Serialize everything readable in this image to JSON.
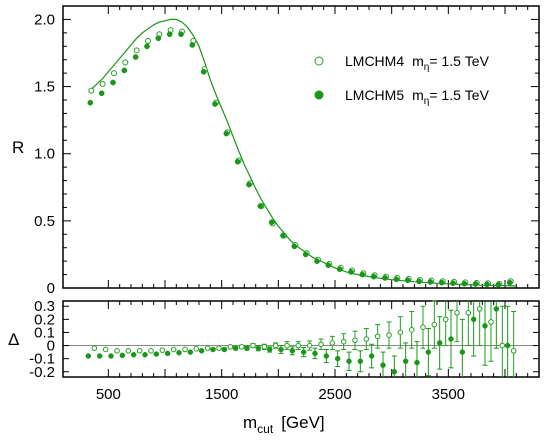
{
  "chart_data": [
    {
      "type": "scatter",
      "panel": "top",
      "ylabel": "R",
      "xlim": [
        100,
        4300
      ],
      "ylim": [
        0,
        2.1
      ],
      "yticks": [
        "0",
        "0.5",
        "1.0",
        "1.5",
        "2.0"
      ],
      "grid": false,
      "legend_position": "upper-right",
      "series": [
        {
          "name": "LMCHM4",
          "label_suffix": "= 1.5 TeV",
          "marker": "open-circle",
          "color": "#22a022",
          "x": [
            350,
            450,
            550,
            650,
            750,
            850,
            950,
            1050,
            1150,
            1250,
            1350,
            1450,
            1550,
            1650,
            1750,
            1850,
            1950,
            2050,
            2150,
            2250,
            2350,
            2450,
            2550,
            2650,
            2750,
            2850,
            2950,
            3050,
            3150,
            3250,
            3350,
            3450,
            3550,
            3650,
            3750,
            3850,
            3950,
            4050
          ],
          "y": [
            1.47,
            1.52,
            1.6,
            1.68,
            1.77,
            1.84,
            1.89,
            1.92,
            1.91,
            1.84,
            1.63,
            1.38,
            1.16,
            0.95,
            0.78,
            0.61,
            0.48,
            0.39,
            0.32,
            0.26,
            0.21,
            0.18,
            0.15,
            0.13,
            0.11,
            0.095,
            0.085,
            0.075,
            0.068,
            0.06,
            0.055,
            0.05,
            0.046,
            0.042,
            0.038,
            0.035,
            0.032,
            0.05
          ]
        },
        {
          "name": "LMCHM5",
          "label_suffix": "= 1.5 TeV",
          "marker": "filled-circle",
          "color": "#1a961a",
          "x": [
            350,
            450,
            550,
            650,
            750,
            850,
            950,
            1050,
            1150,
            1250,
            1350,
            1450,
            1550,
            1650,
            1750,
            1850,
            1950,
            2050,
            2150,
            2250,
            2350,
            2450,
            2550,
            2650,
            2750,
            2850,
            2950,
            3050,
            3150,
            3250,
            3350,
            3450,
            3550,
            3650,
            3750,
            3850,
            3950,
            4050
          ],
          "y": [
            1.38,
            1.45,
            1.53,
            1.62,
            1.72,
            1.8,
            1.86,
            1.89,
            1.89,
            1.81,
            1.61,
            1.37,
            1.15,
            0.94,
            0.77,
            0.61,
            0.49,
            0.39,
            0.31,
            0.25,
            0.2,
            0.17,
            0.14,
            0.12,
            0.1,
            0.085,
            0.075,
            0.065,
            0.058,
            0.05,
            0.045,
            0.04,
            0.036,
            0.032,
            0.03,
            0.027,
            0.025,
            0.04
          ]
        },
        {
          "name": "",
          "marker": "line",
          "color": "#1a961a",
          "x": [
            350,
            400,
            450,
            500,
            550,
            600,
            650,
            700,
            750,
            800,
            850,
            900,
            950,
            1000,
            1050,
            1100,
            1150,
            1200,
            1250,
            1300,
            1350,
            1400,
            1450,
            1500,
            1550,
            1600,
            1650,
            1700,
            1750,
            1800,
            1850,
            1900,
            1950,
            2000,
            2050,
            2100,
            2150,
            2200,
            2250,
            2300,
            2350,
            2400,
            2450,
            2500,
            2600,
            2700,
            2800,
            2900,
            3000,
            3200,
            3400,
            3600,
            3800,
            4000,
            4100
          ],
          "y": [
            1.48,
            1.52,
            1.56,
            1.61,
            1.66,
            1.71,
            1.76,
            1.81,
            1.86,
            1.9,
            1.93,
            1.96,
            1.98,
            1.99,
            2.0,
            2.0,
            1.98,
            1.94,
            1.88,
            1.8,
            1.68,
            1.55,
            1.44,
            1.34,
            1.24,
            1.13,
            1.02,
            0.92,
            0.83,
            0.74,
            0.66,
            0.59,
            0.52,
            0.46,
            0.41,
            0.36,
            0.32,
            0.29,
            0.26,
            0.23,
            0.21,
            0.19,
            0.17,
            0.15,
            0.12,
            0.1,
            0.085,
            0.072,
            0.062,
            0.046,
            0.035,
            0.027,
            0.021,
            0.017,
            0.015
          ]
        }
      ]
    },
    {
      "type": "scatter",
      "panel": "bottom",
      "ylabel": "Δ",
      "xlabel_main": "m",
      "xlabel_sub": "cut",
      "xlabel_unit": "[GeV]",
      "xticks": [
        "500",
        "1500",
        "2500",
        "3500"
      ],
      "xlim": [
        100,
        4300
      ],
      "ylim": [
        -0.24,
        0.34
      ],
      "yticks": [
        "0.3",
        "0.2",
        "0.1",
        "0",
        "-0.1",
        "-0.2"
      ],
      "reference_line": 0,
      "series": [
        {
          "name": "LMCHM4",
          "marker": "open-circle",
          "color": "#22a022",
          "x": [
            350,
            450,
            550,
            650,
            750,
            850,
            950,
            1050,
            1150,
            1250,
            1350,
            1450,
            1550,
            1650,
            1750,
            1850,
            1950,
            2050,
            2150,
            2250,
            2350,
            2450,
            2550,
            2650,
            2750,
            2850,
            2950,
            3050,
            3150,
            3250,
            3350,
            3450,
            3550,
            3650,
            3750,
            3850,
            3950,
            4050
          ],
          "y": [
            -0.02,
            -0.03,
            -0.04,
            -0.04,
            -0.04,
            -0.04,
            -0.035,
            -0.03,
            -0.03,
            -0.025,
            -0.02,
            -0.02,
            -0.01,
            -0.01,
            0.0,
            -0.01,
            0.0,
            0.0,
            0.0,
            0.0,
            0.01,
            0.02,
            0.03,
            0.04,
            0.05,
            0.07,
            0.08,
            0.1,
            0.12,
            0.14,
            0.16,
            0.2,
            0.25,
            0.25,
            0.28,
            0.18,
            0.0,
            -0.04
          ],
          "err": [
            0.005,
            0.005,
            0.005,
            0.005,
            0.005,
            0.005,
            0.005,
            0.005,
            0.005,
            0.005,
            0.006,
            0.008,
            0.01,
            0.012,
            0.015,
            0.02,
            0.02,
            0.03,
            0.03,
            0.035,
            0.04,
            0.05,
            0.06,
            0.07,
            0.08,
            0.09,
            0.1,
            0.12,
            0.14,
            0.16,
            0.18,
            0.2,
            0.22,
            0.25,
            0.28,
            0.3,
            0.3,
            0.3
          ]
        },
        {
          "name": "LMCHM5",
          "marker": "filled-circle",
          "color": "#1a961a",
          "x": [
            350,
            450,
            550,
            650,
            750,
            850,
            950,
            1050,
            1150,
            1250,
            1350,
            1450,
            1550,
            1650,
            1750,
            1850,
            1950,
            2050,
            2150,
            2250,
            2350,
            2450,
            2550,
            2650,
            2750,
            2850,
            2950,
            3050,
            3150,
            3250,
            3350,
            3450,
            3550,
            3650,
            3750,
            3850,
            3950,
            4050
          ],
          "y": [
            -0.08,
            -0.08,
            -0.08,
            -0.075,
            -0.07,
            -0.07,
            -0.065,
            -0.06,
            -0.055,
            -0.05,
            -0.04,
            -0.03,
            -0.03,
            -0.02,
            -0.02,
            -0.02,
            -0.03,
            -0.03,
            -0.04,
            -0.05,
            -0.06,
            -0.08,
            -0.1,
            -0.12,
            -0.12,
            -0.08,
            -0.15,
            -0.2,
            -0.12,
            -0.13,
            -0.05,
            0.02,
            0.05,
            -0.05,
            0.2,
            0.15,
            0.28,
            0.0
          ],
          "err": [
            0.005,
            0.005,
            0.005,
            0.005,
            0.005,
            0.005,
            0.005,
            0.005,
            0.005,
            0.005,
            0.006,
            0.008,
            0.01,
            0.012,
            0.015,
            0.02,
            0.02,
            0.03,
            0.03,
            0.035,
            0.04,
            0.05,
            0.06,
            0.07,
            0.08,
            0.09,
            0.1,
            0.12,
            0.14,
            0.16,
            0.18,
            0.2,
            0.22,
            0.25,
            0.28,
            0.3,
            0.3,
            0.3
          ]
        }
      ]
    }
  ]
}
